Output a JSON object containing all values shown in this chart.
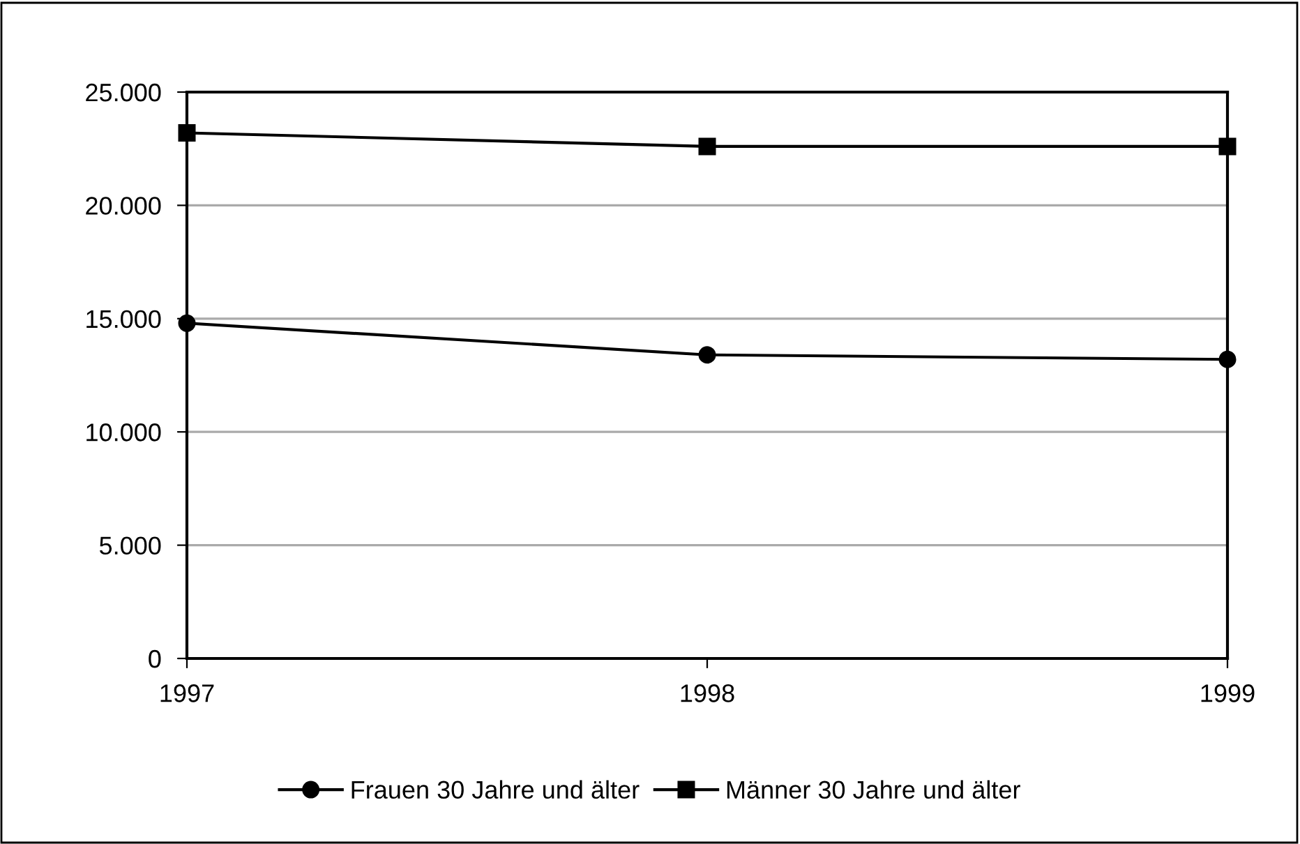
{
  "chart_data": {
    "type": "line",
    "categories": [
      "1997",
      "1998",
      "1999"
    ],
    "series": [
      {
        "name": "Frauen 30 Jahre und älter",
        "color": "#000000",
        "marker": "circle",
        "values": [
          14800,
          13400,
          13200
        ]
      },
      {
        "name": "Männer 30 Jahre und älter",
        "color": "#000000",
        "marker": "square",
        "values": [
          23200,
          22600,
          22600
        ]
      }
    ],
    "ylim": [
      0,
      25000
    ],
    "yticks": [
      {
        "value": 0,
        "label": "0"
      },
      {
        "value": 5000,
        "label": "5.000"
      },
      {
        "value": 10000,
        "label": "10.000"
      },
      {
        "value": 15000,
        "label": "15.000"
      },
      {
        "value": 20000,
        "label": "20.000"
      },
      {
        "value": 25000,
        "label": "25.000"
      }
    ],
    "grid": "y",
    "legend": "bottom",
    "line_style": "solid"
  }
}
